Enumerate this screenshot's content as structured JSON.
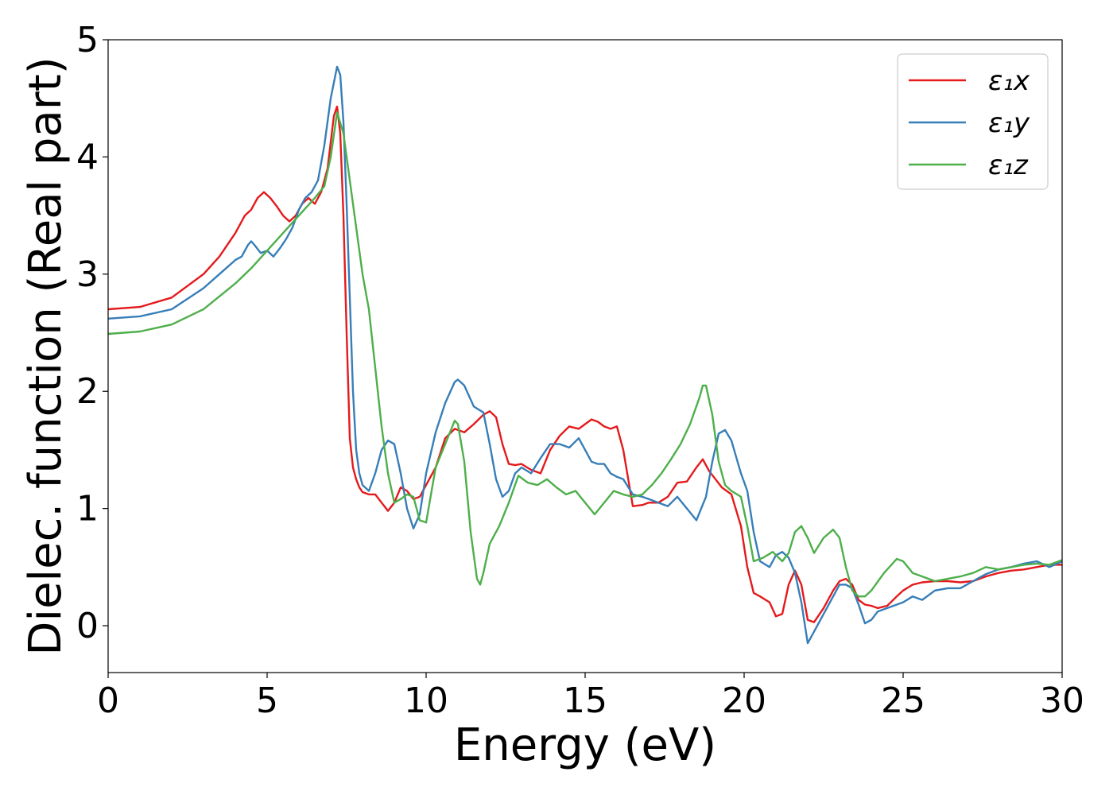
{
  "chart_data": {
    "type": "line",
    "title": "",
    "xlabel": "Energy (eV)",
    "ylabel": "Dielec. function (Real part)",
    "xlim": [
      0,
      30
    ],
    "ylim": [
      -0.4,
      5
    ],
    "xticks": [
      0,
      5,
      10,
      15,
      20,
      25,
      30
    ],
    "yticks": [
      0,
      1,
      2,
      3,
      4,
      5
    ],
    "grid": false,
    "legend_position": "top-right",
    "series": [
      {
        "name": "ε₁x",
        "color": "#e41a1c",
        "x": [
          0,
          1,
          2,
          3,
          3.5,
          4,
          4.3,
          4.5,
          4.7,
          4.9,
          5.1,
          5.3,
          5.5,
          5.7,
          5.9,
          6.1,
          6.3,
          6.5,
          6.7,
          6.9,
          7.1,
          7.2,
          7.3,
          7.4,
          7.5,
          7.6,
          7.7,
          7.8,
          7.9,
          8.0,
          8.2,
          8.4,
          8.6,
          8.8,
          9.0,
          9.2,
          9.4,
          9.6,
          9.8,
          10.0,
          10.3,
          10.6,
          10.9,
          11.2,
          11.5,
          11.8,
          12.0,
          12.2,
          12.4,
          12.6,
          12.8,
          13.0,
          13.3,
          13.6,
          13.9,
          14.2,
          14.5,
          14.8,
          15.0,
          15.2,
          15.4,
          15.6,
          15.8,
          16.0,
          16.2,
          16.5,
          16.8,
          17.0,
          17.3,
          17.6,
          17.9,
          18.2,
          18.5,
          18.7,
          18.9,
          19.1,
          19.3,
          19.6,
          19.9,
          20.1,
          20.3,
          20.5,
          20.8,
          21.0,
          21.2,
          21.4,
          21.6,
          21.8,
          22.0,
          22.2,
          22.5,
          22.8,
          23.0,
          23.2,
          23.4,
          23.6,
          23.8,
          24.0,
          24.2,
          24.5,
          24.8,
          25.0,
          25.3,
          25.6,
          26.0,
          26.4,
          26.8,
          27.2,
          27.6,
          28.0,
          28.4,
          28.8,
          29.2,
          29.6,
          30.0
        ],
        "y": [
          2.7,
          2.72,
          2.8,
          3.0,
          3.15,
          3.35,
          3.5,
          3.55,
          3.65,
          3.7,
          3.65,
          3.58,
          3.5,
          3.45,
          3.5,
          3.6,
          3.65,
          3.6,
          3.7,
          3.9,
          4.35,
          4.43,
          4.2,
          3.5,
          2.5,
          1.6,
          1.35,
          1.25,
          1.18,
          1.14,
          1.12,
          1.12,
          1.05,
          0.98,
          1.05,
          1.18,
          1.15,
          1.08,
          1.1,
          1.2,
          1.35,
          1.6,
          1.68,
          1.65,
          1.72,
          1.8,
          1.83,
          1.78,
          1.55,
          1.38,
          1.37,
          1.38,
          1.33,
          1.3,
          1.5,
          1.62,
          1.7,
          1.68,
          1.72,
          1.76,
          1.74,
          1.7,
          1.68,
          1.7,
          1.5,
          1.02,
          1.03,
          1.05,
          1.05,
          1.1,
          1.22,
          1.23,
          1.35,
          1.42,
          1.32,
          1.25,
          1.18,
          1.12,
          0.85,
          0.5,
          0.28,
          0.25,
          0.2,
          0.08,
          0.1,
          0.35,
          0.47,
          0.35,
          0.05,
          0.03,
          0.15,
          0.3,
          0.38,
          0.4,
          0.35,
          0.22,
          0.18,
          0.17,
          0.15,
          0.17,
          0.25,
          0.3,
          0.35,
          0.37,
          0.38,
          0.38,
          0.37,
          0.38,
          0.42,
          0.45,
          0.47,
          0.48,
          0.5,
          0.52,
          0.52
        ],
        "legend": "top-right"
      },
      {
        "name": "ε₁y",
        "color": "#377eb8",
        "x": [
          0,
          1,
          2,
          3,
          3.5,
          4,
          4.2,
          4.4,
          4.5,
          4.6,
          4.8,
          5.0,
          5.2,
          5.4,
          5.6,
          5.8,
          6.0,
          6.2,
          6.4,
          6.6,
          6.8,
          7.0,
          7.2,
          7.3,
          7.4,
          7.5,
          7.6,
          7.7,
          7.8,
          7.9,
          8.0,
          8.2,
          8.4,
          8.6,
          8.8,
          9.0,
          9.2,
          9.4,
          9.6,
          9.8,
          10.0,
          10.3,
          10.6,
          10.9,
          11.0,
          11.2,
          11.5,
          11.8,
          12.0,
          12.2,
          12.4,
          12.6,
          12.8,
          13.0,
          13.3,
          13.6,
          13.9,
          14.2,
          14.5,
          14.8,
          15.0,
          15.2,
          15.4,
          15.6,
          15.8,
          16.0,
          16.2,
          16.5,
          16.8,
          17.0,
          17.3,
          17.6,
          17.9,
          18.2,
          18.5,
          18.8,
          19.0,
          19.2,
          19.4,
          19.6,
          19.9,
          20.1,
          20.3,
          20.5,
          20.8,
          21.0,
          21.2,
          21.4,
          21.6,
          21.8,
          22.0,
          22.2,
          22.5,
          22.8,
          23.0,
          23.2,
          23.4,
          23.6,
          23.8,
          24.0,
          24.2,
          24.5,
          24.8,
          25.0,
          25.3,
          25.6,
          26.0,
          26.4,
          26.8,
          27.2,
          27.6,
          28.0,
          28.4,
          28.8,
          29.2,
          29.6,
          30.0
        ],
        "y": [
          2.62,
          2.64,
          2.7,
          2.88,
          3.0,
          3.12,
          3.15,
          3.25,
          3.28,
          3.25,
          3.18,
          3.2,
          3.15,
          3.22,
          3.3,
          3.4,
          3.55,
          3.65,
          3.7,
          3.8,
          4.1,
          4.5,
          4.77,
          4.7,
          4.3,
          3.6,
          2.8,
          2.0,
          1.5,
          1.3,
          1.2,
          1.15,
          1.3,
          1.5,
          1.58,
          1.55,
          1.3,
          1.0,
          0.83,
          0.95,
          1.3,
          1.65,
          1.9,
          2.08,
          2.1,
          2.05,
          1.87,
          1.82,
          1.55,
          1.25,
          1.1,
          1.15,
          1.3,
          1.35,
          1.3,
          1.43,
          1.55,
          1.55,
          1.52,
          1.6,
          1.5,
          1.4,
          1.38,
          1.38,
          1.3,
          1.27,
          1.25,
          1.12,
          1.1,
          1.08,
          1.05,
          1.02,
          1.1,
          1.0,
          0.9,
          1.1,
          1.4,
          1.64,
          1.67,
          1.58,
          1.3,
          1.15,
          0.8,
          0.55,
          0.5,
          0.6,
          0.63,
          0.58,
          0.45,
          0.2,
          -0.15,
          -0.05,
          0.1,
          0.25,
          0.35,
          0.35,
          0.32,
          0.18,
          0.02,
          0.05,
          0.12,
          0.15,
          0.18,
          0.2,
          0.25,
          0.22,
          0.3,
          0.32,
          0.32,
          0.38,
          0.44,
          0.48,
          0.5,
          0.53,
          0.55,
          0.5,
          0.55
        ],
        "legend": "top-right"
      },
      {
        "name": "ε₁z",
        "color": "#4daf4a",
        "x": [
          0,
          1,
          2,
          3,
          4,
          4.5,
          5.0,
          5.5,
          6.0,
          6.5,
          6.8,
          7.0,
          7.2,
          7.4,
          7.6,
          7.8,
          8.0,
          8.2,
          8.4,
          8.6,
          8.8,
          9.0,
          9.2,
          9.4,
          9.6,
          9.8,
          10.0,
          10.3,
          10.6,
          10.9,
          11.0,
          11.2,
          11.4,
          11.6,
          11.7,
          11.8,
          12.0,
          12.3,
          12.6,
          12.9,
          13.2,
          13.5,
          13.8,
          14.1,
          14.4,
          14.7,
          15.0,
          15.3,
          15.6,
          15.9,
          16.2,
          16.5,
          16.8,
          17.1,
          17.4,
          17.7,
          18.0,
          18.3,
          18.6,
          18.7,
          18.8,
          19.0,
          19.2,
          19.4,
          19.6,
          19.9,
          20.1,
          20.3,
          20.6,
          20.9,
          21.2,
          21.4,
          21.6,
          21.8,
          22.0,
          22.2,
          22.5,
          22.8,
          23.0,
          23.2,
          23.4,
          23.6,
          23.8,
          24.0,
          24.4,
          24.8,
          25.0,
          25.3,
          25.6,
          26.0,
          26.4,
          26.8,
          27.2,
          27.6,
          28.0,
          28.4,
          28.8,
          29.2,
          29.6,
          30.0
        ],
        "y": [
          2.49,
          2.51,
          2.57,
          2.7,
          2.92,
          3.05,
          3.2,
          3.35,
          3.5,
          3.65,
          3.75,
          4.0,
          4.38,
          4.2,
          3.8,
          3.4,
          3.0,
          2.7,
          2.2,
          1.7,
          1.3,
          1.05,
          1.08,
          1.12,
          1.1,
          0.9,
          0.88,
          1.35,
          1.55,
          1.75,
          1.72,
          1.4,
          0.8,
          0.4,
          0.35,
          0.45,
          0.7,
          0.85,
          1.05,
          1.28,
          1.22,
          1.2,
          1.25,
          1.18,
          1.12,
          1.15,
          1.05,
          0.95,
          1.05,
          1.15,
          1.12,
          1.1,
          1.12,
          1.2,
          1.3,
          1.42,
          1.55,
          1.72,
          1.95,
          2.05,
          2.05,
          1.8,
          1.4,
          1.2,
          1.15,
          1.1,
          0.85,
          0.55,
          0.58,
          0.63,
          0.55,
          0.62,
          0.8,
          0.85,
          0.75,
          0.62,
          0.75,
          0.82,
          0.75,
          0.5,
          0.3,
          0.25,
          0.25,
          0.3,
          0.45,
          0.57,
          0.55,
          0.45,
          0.42,
          0.38,
          0.4,
          0.42,
          0.45,
          0.5,
          0.48,
          0.5,
          0.52,
          0.53,
          0.52,
          0.56
        ]
      }
    ]
  }
}
